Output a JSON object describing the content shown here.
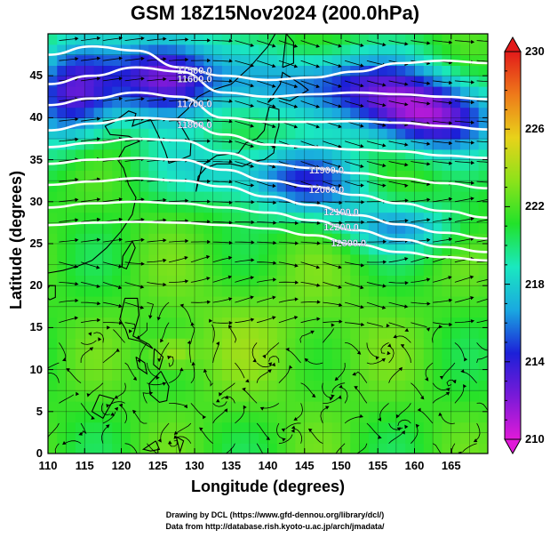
{
  "title": "GSM 18Z15Nov2024 (200.0hPa)",
  "axes": {
    "xlabel": "Longitude (degrees)",
    "ylabel": "Latitude  (degrees)",
    "x_ticks": [
      "110",
      "115",
      "120",
      "125",
      "130",
      "135",
      "140",
      "145",
      "150",
      "155",
      "160",
      "165"
    ],
    "y_ticks": [
      "0",
      "5",
      "10",
      "15",
      "20",
      "25",
      "30",
      "35",
      "40",
      "45"
    ]
  },
  "colorbar": {
    "ticks": [
      "210",
      "214",
      "218",
      "222",
      "226",
      "230"
    ],
    "min": 210,
    "max": 230,
    "stops": [
      "#e01ad8",
      "#7a1ad8",
      "#1c20d8",
      "#1aa8e0",
      "#1ae8c0",
      "#22e22a",
      "#8de21a",
      "#e8d21a",
      "#ee7a1a",
      "#e21a1a"
    ]
  },
  "credits": {
    "line1": "Drawing by DCL (https://www.gfd-dennou.org/library/dcl/)",
    "line2": "Data from http://database.rish.kyoto-u.ac.jp/arch/jmadata/"
  },
  "contour_labels": [
    "11500.0",
    "11600.0",
    "11700.0",
    "11800.0",
    "11900.0",
    "12000.0",
    "12100.0",
    "12200.0",
    "12300.0"
  ],
  "chart_data": {
    "type": "heatmap",
    "title": "GSM 18Z15Nov2024 (200.0hPa)",
    "xlabel": "Longitude (degrees)",
    "ylabel": "Latitude  (degrees)",
    "xlim": [
      110,
      170
    ],
    "ylim": [
      0,
      50
    ],
    "colorbar_range": [
      210,
      230
    ],
    "overlays": [
      "geopotential height contours (white)",
      "wind streamlines (black)",
      "coastlines",
      "grid"
    ],
    "contours": [
      {
        "label": "11500.0",
        "lat": [
          47.5,
          48.5,
          48.0,
          46.0,
          45.0,
          44.5,
          44.8,
          45.5,
          46.5,
          46.8,
          46.5
        ]
      },
      {
        "label": "11600.0",
        "lat": [
          44.0,
          45.0,
          46.0,
          45.5,
          43.0,
          42.5,
          42.8,
          43.0,
          42.8,
          42.5,
          42.2
        ]
      },
      {
        "label": "11700.0",
        "lat": [
          41.5,
          42.3,
          43.0,
          42.5,
          40.0,
          39.5,
          39.5,
          39.6,
          39.4,
          39.0,
          38.6
        ]
      },
      {
        "label": "11800.0",
        "lat": [
          38.5,
          39.3,
          40.0,
          39.8,
          38.0,
          36.8,
          36.5,
          36.2,
          36.0,
          35.5,
          35.2
        ]
      },
      {
        "label": "11900.0",
        "lat": [
          36.5,
          37.0,
          37.5,
          37.3,
          35.8,
          34.5,
          34.0,
          33.4,
          32.8,
          32.2,
          31.6
        ]
      },
      {
        "label": "12000.0",
        "lat": [
          34.5,
          35.0,
          35.2,
          35.0,
          33.8,
          32.5,
          31.8,
          30.8,
          29.8,
          28.9,
          28.1
        ]
      },
      {
        "label": "12100.0",
        "lat": [
          32.0,
          32.4,
          32.8,
          32.5,
          31.8,
          30.6,
          29.6,
          28.4,
          27.3,
          26.3,
          25.6
        ]
      },
      {
        "label": "12200.0",
        "lat": [
          29.3,
          29.8,
          30.0,
          29.8,
          29.3,
          28.7,
          27.8,
          26.6,
          25.5,
          24.6,
          24.0
        ]
      },
      {
        "label": "12300.0",
        "lat": [
          27.2,
          27.5,
          27.6,
          27.5,
          27.2,
          26.8,
          26.0,
          24.9,
          24.0,
          23.4,
          23.0
        ]
      }
    ],
    "contour_lon": [
      110,
      116,
      122,
      128,
      134,
      140,
      146,
      152,
      158,
      164,
      170
    ]
  }
}
